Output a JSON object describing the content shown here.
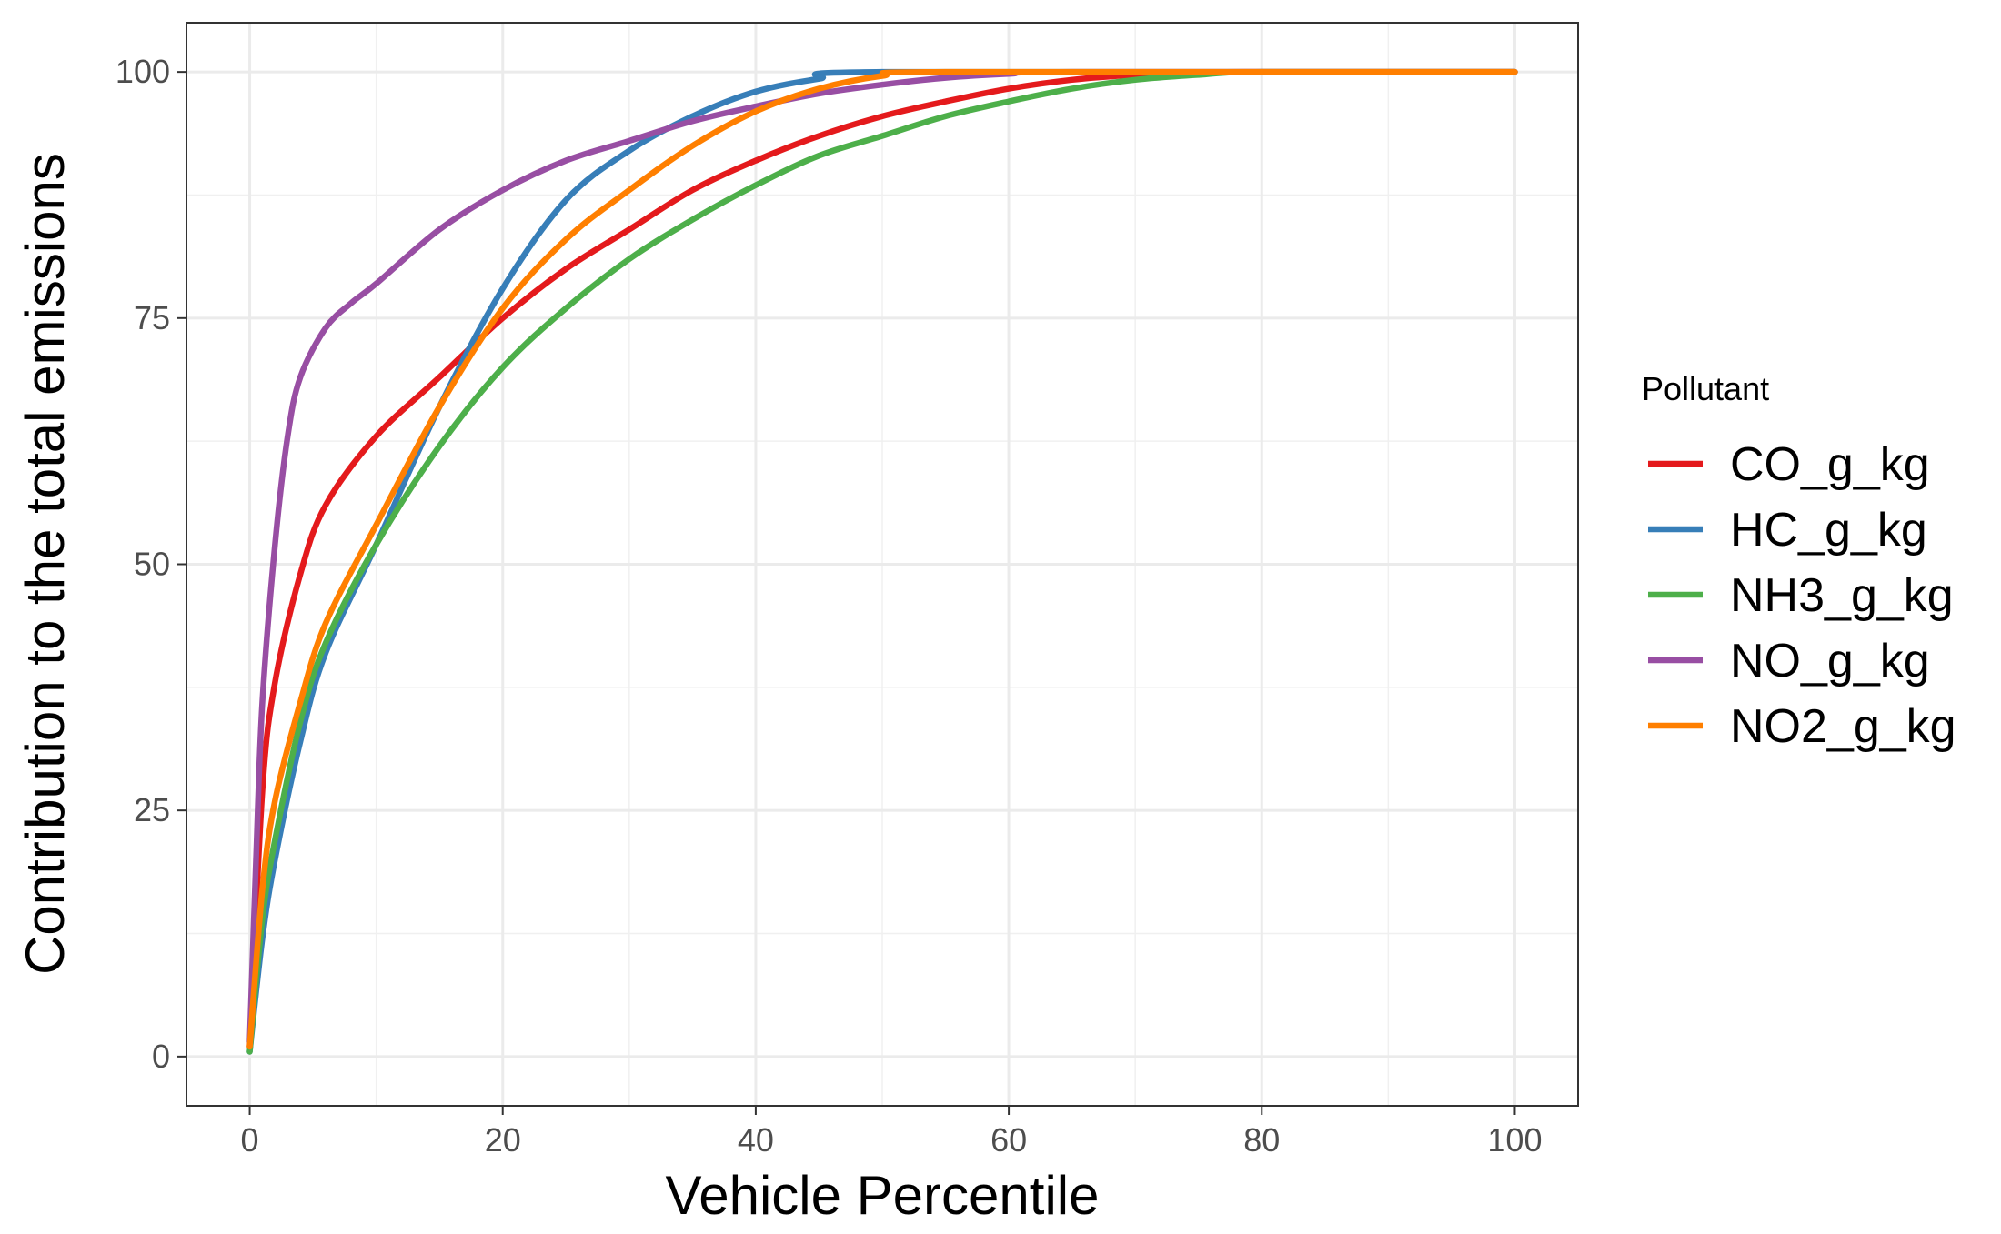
{
  "chart_data": {
    "type": "line",
    "xlabel": "Vehicle Percentile",
    "ylabel": "Contribution to the total emissions",
    "xlim": [
      -5,
      105
    ],
    "ylim": [
      -5,
      105
    ],
    "x_ticks": [
      0,
      20,
      40,
      60,
      80,
      100
    ],
    "y_ticks": [
      0,
      25,
      50,
      75,
      100
    ],
    "x_tick_labels": [
      "0",
      "20",
      "40",
      "60",
      "80",
      "100"
    ],
    "y_tick_labels": [
      "0",
      "25",
      "50",
      "75",
      "100"
    ],
    "grid": true,
    "legend": {
      "title": "Pollutant",
      "position": "right"
    },
    "series": [
      {
        "name": "CO_g_kg",
        "color": "#e41a1c",
        "points": [
          [
            0,
            1
          ],
          [
            1,
            27
          ],
          [
            2,
            38
          ],
          [
            4,
            49
          ],
          [
            6,
            56
          ],
          [
            10,
            63
          ],
          [
            15,
            69
          ],
          [
            20,
            75
          ],
          [
            25,
            80
          ],
          [
            30,
            84
          ],
          [
            35,
            88
          ],
          [
            40,
            91
          ],
          [
            45,
            93.5
          ],
          [
            50,
            95.5
          ],
          [
            55,
            97
          ],
          [
            60,
            98.3
          ],
          [
            65,
            99.2
          ],
          [
            70,
            99.7
          ],
          [
            75,
            99.95
          ],
          [
            80,
            100
          ],
          [
            100,
            100
          ]
        ]
      },
      {
        "name": "HC_g_kg",
        "color": "#377eb8",
        "points": [
          [
            0,
            0.5
          ],
          [
            1,
            12
          ],
          [
            2,
            20
          ],
          [
            4,
            32
          ],
          [
            6,
            41
          ],
          [
            10,
            52
          ],
          [
            15,
            66
          ],
          [
            20,
            78
          ],
          [
            25,
            87
          ],
          [
            30,
            92
          ],
          [
            35,
            95.5
          ],
          [
            40,
            98
          ],
          [
            45,
            99.3
          ],
          [
            50,
            100
          ],
          [
            100,
            100
          ]
        ]
      },
      {
        "name": "NH3_g_kg",
        "color": "#4daf4a",
        "points": [
          [
            0,
            0.5
          ],
          [
            1,
            14
          ],
          [
            2,
            22
          ],
          [
            4,
            34
          ],
          [
            6,
            42
          ],
          [
            10,
            52
          ],
          [
            15,
            62
          ],
          [
            20,
            70
          ],
          [
            25,
            76
          ],
          [
            30,
            81
          ],
          [
            35,
            85
          ],
          [
            40,
            88.5
          ],
          [
            45,
            91.5
          ],
          [
            50,
            93.5
          ],
          [
            55,
            95.5
          ],
          [
            60,
            97
          ],
          [
            65,
            98.3
          ],
          [
            70,
            99.2
          ],
          [
            75,
            99.7
          ],
          [
            80,
            100
          ],
          [
            100,
            100
          ]
        ]
      },
      {
        "name": "NO_g_kg",
        "color": "#984ea3",
        "points": [
          [
            0,
            1.5
          ],
          [
            0.5,
            20
          ],
          [
            1,
            36
          ],
          [
            2,
            52
          ],
          [
            3,
            63
          ],
          [
            4,
            69
          ],
          [
            6,
            74
          ],
          [
            8,
            76.5
          ],
          [
            10,
            78.5
          ],
          [
            15,
            84
          ],
          [
            20,
            88
          ],
          [
            25,
            91
          ],
          [
            30,
            93
          ],
          [
            35,
            95
          ],
          [
            40,
            96.5
          ],
          [
            45,
            97.8
          ],
          [
            50,
            98.7
          ],
          [
            55,
            99.4
          ],
          [
            60,
            99.8
          ],
          [
            65,
            100
          ],
          [
            100,
            100
          ]
        ]
      },
      {
        "name": "NO2_g_kg",
        "color": "#ff7f00",
        "points": [
          [
            0,
            1
          ],
          [
            1,
            17
          ],
          [
            2,
            26
          ],
          [
            4,
            36
          ],
          [
            6,
            44
          ],
          [
            10,
            54
          ],
          [
            15,
            66
          ],
          [
            20,
            76
          ],
          [
            25,
            83
          ],
          [
            30,
            88
          ],
          [
            35,
            92.5
          ],
          [
            40,
            96
          ],
          [
            45,
            98.3
          ],
          [
            50,
            99.6
          ],
          [
            55,
            100
          ],
          [
            100,
            100
          ]
        ]
      }
    ]
  }
}
